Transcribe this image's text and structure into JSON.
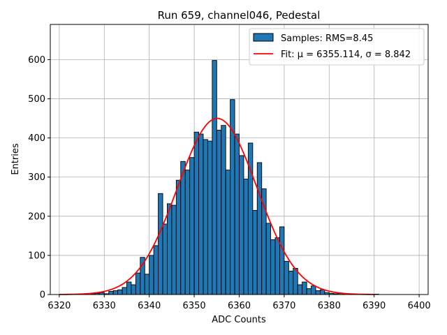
{
  "chart_data": {
    "type": "bar",
    "title": "Run 659, channel046, Pedestal",
    "xlabel": "ADC Counts",
    "ylabel": "Entries",
    "xlim": [
      6318,
      6402
    ],
    "ylim": [
      0,
      690
    ],
    "xticks": [
      6320,
      6330,
      6340,
      6350,
      6360,
      6370,
      6380,
      6390,
      6400
    ],
    "yticks": [
      0,
      100,
      200,
      300,
      400,
      500,
      600
    ],
    "grid": true,
    "legend_position": "top-right",
    "bar_color": "#1f77b4",
    "fit_color": "#ff0000",
    "histogram": {
      "name": "Samples: RMS=8.45",
      "bins": [
        [
          6325,
          1
        ],
        [
          6326,
          0
        ],
        [
          6327,
          2
        ],
        [
          6328,
          3
        ],
        [
          6329,
          5
        ],
        [
          6330,
          2
        ],
        [
          6331,
          8
        ],
        [
          6332,
          10
        ],
        [
          6333,
          12
        ],
        [
          6334,
          18
        ],
        [
          6335,
          32
        ],
        [
          6336,
          25
        ],
        [
          6337,
          55
        ],
        [
          6338,
          95
        ],
        [
          6339,
          52
        ],
        [
          6340,
          100
        ],
        [
          6341,
          125
        ],
        [
          6342,
          258
        ],
        [
          6343,
          180
        ],
        [
          6344,
          232
        ],
        [
          6345,
          228
        ],
        [
          6346,
          292
        ],
        [
          6347,
          340
        ],
        [
          6348,
          318
        ],
        [
          6349,
          350
        ],
        [
          6350,
          415
        ],
        [
          6351,
          410
        ],
        [
          6352,
          396
        ],
        [
          6353,
          392
        ],
        [
          6354,
          598
        ],
        [
          6355,
          420
        ],
        [
          6356,
          432
        ],
        [
          6357,
          318
        ],
        [
          6358,
          498
        ],
        [
          6359,
          410
        ],
        [
          6360,
          355
        ],
        [
          6361,
          295
        ],
        [
          6362,
          387
        ],
        [
          6363,
          215
        ],
        [
          6364,
          337
        ],
        [
          6365,
          270
        ],
        [
          6366,
          182
        ],
        [
          6367,
          140
        ],
        [
          6368,
          145
        ],
        [
          6369,
          173
        ],
        [
          6370,
          85
        ],
        [
          6371,
          60
        ],
        [
          6372,
          67
        ],
        [
          6373,
          25
        ],
        [
          6374,
          32
        ],
        [
          6375,
          15
        ],
        [
          6376,
          22
        ],
        [
          6377,
          10
        ],
        [
          6378,
          12
        ],
        [
          6379,
          5
        ],
        [
          6380,
          3
        ],
        [
          6381,
          2
        ],
        [
          6382,
          3
        ],
        [
          6383,
          1
        ],
        [
          6384,
          0
        ],
        [
          6385,
          0
        ],
        [
          6386,
          0
        ],
        [
          6387,
          0
        ],
        [
          6388,
          0
        ],
        [
          6389,
          0
        ],
        [
          6390,
          1
        ]
      ]
    },
    "fit": {
      "name": "Fit: μ = 6355.114, σ = 8.842",
      "mu": 6355.114,
      "sigma": 8.842,
      "amplitude": 450,
      "x_range": [
        6320,
        6390
      ]
    }
  }
}
